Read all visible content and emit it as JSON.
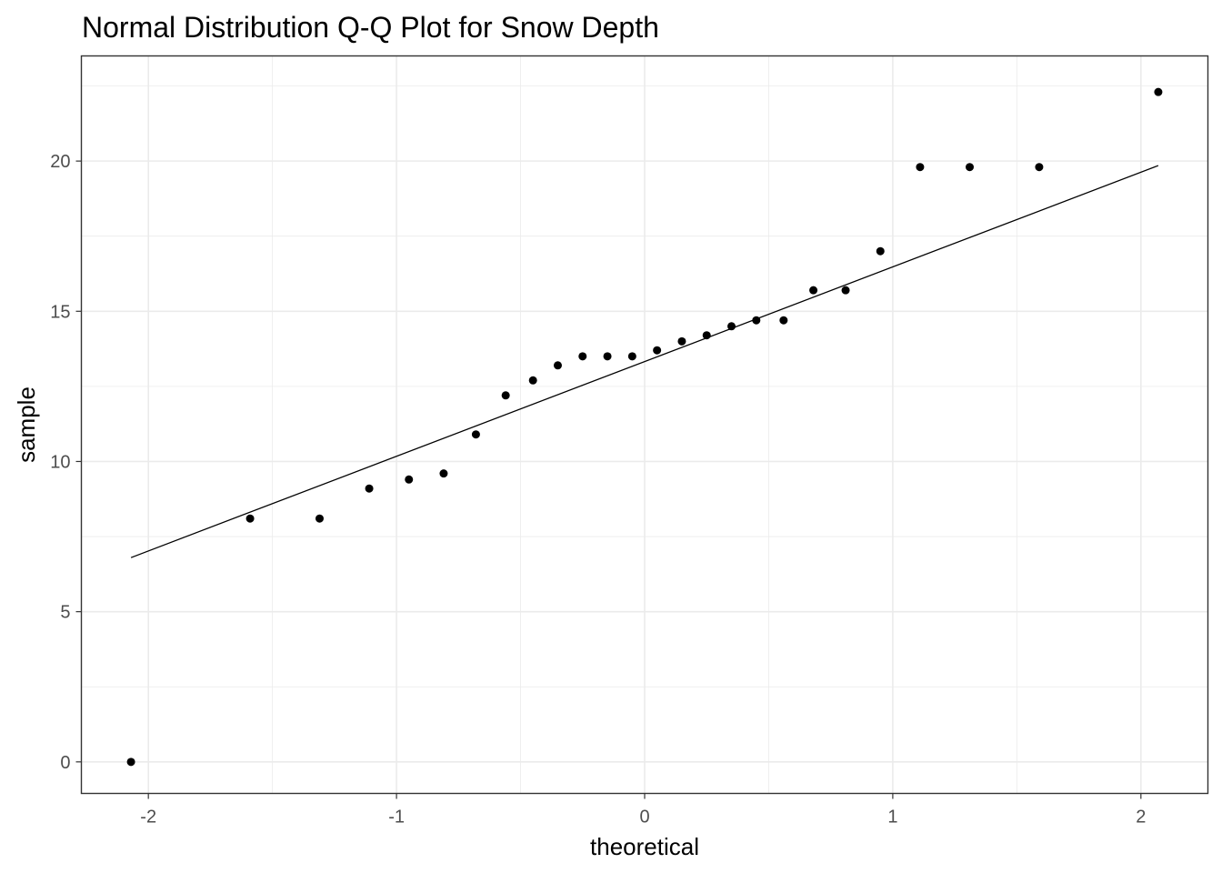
{
  "chart_data": {
    "type": "scatter",
    "title": "Normal Distribution Q-Q Plot for Snow Depth",
    "xlabel": "theoretical",
    "ylabel": "sample",
    "xlim": [
      -2.27,
      2.27
    ],
    "ylim": [
      -1.05,
      23.5
    ],
    "x_ticks": [
      -2,
      -1,
      0,
      1,
      2
    ],
    "x_tick_labels": [
      "-2",
      "-1",
      "0",
      "1",
      "2"
    ],
    "y_ticks": [
      0,
      5,
      10,
      15,
      20
    ],
    "y_tick_labels": [
      "0",
      "5",
      "10",
      "15",
      "20"
    ],
    "x_minor_ticks": [
      -1.5,
      -0.5,
      0.5,
      1.5
    ],
    "y_minor_ticks": [
      2.5,
      7.5,
      12.5,
      17.5,
      22.5
    ],
    "grid": true,
    "points": [
      {
        "x": -2.07,
        "y": 0.0
      },
      {
        "x": -1.59,
        "y": 8.1
      },
      {
        "x": -1.31,
        "y": 8.1
      },
      {
        "x": -1.11,
        "y": 9.1
      },
      {
        "x": -0.95,
        "y": 9.4
      },
      {
        "x": -0.81,
        "y": 9.6
      },
      {
        "x": -0.68,
        "y": 10.9
      },
      {
        "x": -0.56,
        "y": 12.2
      },
      {
        "x": -0.45,
        "y": 12.7
      },
      {
        "x": -0.35,
        "y": 13.2
      },
      {
        "x": -0.25,
        "y": 13.5
      },
      {
        "x": -0.15,
        "y": 13.5
      },
      {
        "x": -0.05,
        "y": 13.5
      },
      {
        "x": 0.05,
        "y": 13.7
      },
      {
        "x": 0.15,
        "y": 14.0
      },
      {
        "x": 0.25,
        "y": 14.2
      },
      {
        "x": 0.35,
        "y": 14.5
      },
      {
        "x": 0.45,
        "y": 14.7
      },
      {
        "x": 0.56,
        "y": 14.7
      },
      {
        "x": 0.68,
        "y": 15.7
      },
      {
        "x": 0.81,
        "y": 15.7
      },
      {
        "x": 0.95,
        "y": 17.0
      },
      {
        "x": 1.11,
        "y": 19.8
      },
      {
        "x": 1.31,
        "y": 19.8
      },
      {
        "x": 1.59,
        "y": 19.8
      },
      {
        "x": 2.07,
        "y": 22.3
      }
    ],
    "reference_line": {
      "from": {
        "x": -2.07,
        "y": 6.8
      },
      "to": {
        "x": 2.07,
        "y": 19.85
      }
    },
    "colors": {
      "points": "#000000",
      "line": "#000000",
      "grid": "#ebebeb",
      "panel_border": "#333333"
    }
  }
}
